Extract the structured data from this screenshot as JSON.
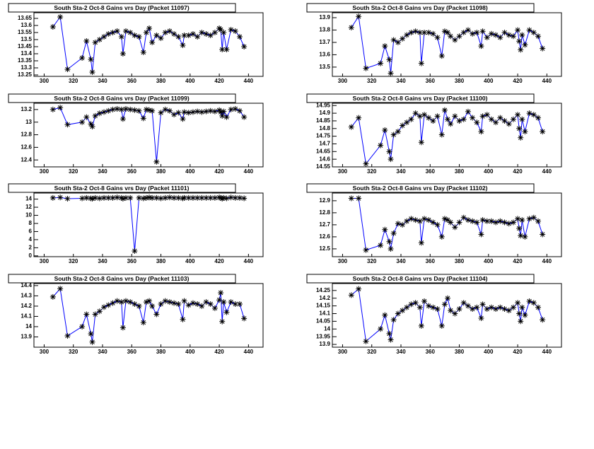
{
  "chart_data": [
    {
      "type": "line",
      "title": "South Sta-2 Oct-8 Gains vrs Day (Packet 11097)",
      "color": "#0000ff",
      "marker_color": "#000000",
      "x": [
        306,
        311,
        316,
        326,
        329,
        332,
        333,
        335,
        338,
        341,
        344,
        347,
        350,
        353,
        354,
        356,
        359,
        362,
        365,
        368,
        370,
        372,
        374,
        377,
        380,
        383,
        386,
        389,
        392,
        395,
        396,
        399,
        402,
        405,
        408,
        411,
        414,
        417,
        420,
        421,
        422,
        423,
        425,
        428,
        431,
        434,
        437
      ],
      "values": [
        13.59,
        13.66,
        13.29,
        13.37,
        13.49,
        13.36,
        13.27,
        13.48,
        13.5,
        13.52,
        13.54,
        13.55,
        13.56,
        13.52,
        13.4,
        13.56,
        13.55,
        13.53,
        13.52,
        13.41,
        13.55,
        13.58,
        13.48,
        13.53,
        13.51,
        13.55,
        13.56,
        13.54,
        13.52,
        13.46,
        13.53,
        13.53,
        13.54,
        13.52,
        13.55,
        13.54,
        13.53,
        13.55,
        13.58,
        13.57,
        13.43,
        13.55,
        13.43,
        13.57,
        13.56,
        13.52,
        13.45
      ],
      "xlim": [
        293,
        450
      ],
      "xticks": [
        300,
        320,
        340,
        360,
        380,
        400,
        420,
        440
      ],
      "ylim": [
        13.24,
        13.69
      ],
      "yticks": [
        13.25,
        13.3,
        13.35,
        13.4,
        13.45,
        13.5,
        13.55,
        13.6,
        13.65
      ]
    },
    {
      "type": "line",
      "title": "South Sta-2 Oct-8 Gains vrs Day (Packet 11098)",
      "color": "#0000ff",
      "marker_color": "#000000",
      "x": [
        306,
        311,
        316,
        326,
        329,
        332,
        333,
        335,
        338,
        341,
        344,
        347,
        350,
        353,
        354,
        356,
        359,
        362,
        365,
        368,
        370,
        372,
        374,
        377,
        380,
        383,
        386,
        389,
        392,
        395,
        396,
        399,
        402,
        405,
        408,
        411,
        414,
        417,
        420,
        421,
        422,
        423,
        425,
        428,
        431,
        434,
        437
      ],
      "values": [
        13.82,
        13.91,
        13.49,
        13.53,
        13.67,
        13.56,
        13.45,
        13.72,
        13.7,
        13.73,
        13.76,
        13.78,
        13.79,
        13.78,
        13.53,
        13.78,
        13.78,
        13.77,
        13.74,
        13.59,
        13.79,
        13.78,
        13.75,
        13.72,
        13.75,
        13.78,
        13.8,
        13.77,
        13.78,
        13.67,
        13.79,
        13.74,
        13.77,
        13.76,
        13.74,
        13.78,
        13.76,
        13.75,
        13.8,
        13.71,
        13.64,
        13.76,
        13.68,
        13.8,
        13.78,
        13.75,
        13.65
      ],
      "xlim": [
        293,
        450
      ],
      "xticks": [
        300,
        320,
        340,
        360,
        380,
        400,
        420,
        440
      ],
      "ylim": [
        13.425,
        13.94
      ],
      "yticks": [
        13.5,
        13.6,
        13.7,
        13.8,
        13.9
      ]
    },
    {
      "type": "line",
      "title": "South Sta-2 Oct-8 Gains vrs Day (Packet 11099)",
      "color": "#0000ff",
      "marker_color": "#000000",
      "x": [
        306,
        311,
        316,
        326,
        329,
        332,
        333,
        335,
        338,
        341,
        344,
        347,
        350,
        353,
        354,
        356,
        359,
        362,
        365,
        368,
        370,
        372,
        374,
        377,
        380,
        383,
        386,
        389,
        392,
        395,
        396,
        399,
        402,
        405,
        408,
        411,
        414,
        417,
        420,
        421,
        422,
        423,
        425,
        428,
        431,
        434,
        437
      ],
      "values": [
        13.2,
        13.23,
        12.96,
        13.0,
        13.08,
        12.97,
        12.93,
        13.1,
        13.14,
        13.16,
        13.18,
        13.2,
        13.21,
        13.2,
        13.05,
        13.21,
        13.2,
        13.19,
        13.18,
        13.06,
        13.2,
        13.19,
        13.18,
        12.37,
        13.15,
        13.2,
        13.18,
        13.12,
        13.15,
        13.05,
        13.16,
        13.15,
        13.16,
        13.17,
        13.16,
        13.17,
        13.18,
        13.17,
        13.19,
        13.16,
        13.1,
        13.17,
        13.08,
        13.2,
        13.21,
        13.18,
        13.08
      ],
      "xlim": [
        293,
        450
      ],
      "xticks": [
        300,
        320,
        340,
        360,
        380,
        400,
        420,
        440
      ],
      "ylim": [
        12.29,
        13.3
      ],
      "yticks": [
        12.4,
        12.6,
        12.8,
        13,
        13.2
      ]
    },
    {
      "type": "line",
      "title": "South Sta-2 Oct-8 Gains vrs Day (Packet 11100)",
      "color": "#0000ff",
      "marker_color": "#000000",
      "x": [
        306,
        311,
        316,
        326,
        329,
        332,
        333,
        335,
        338,
        341,
        344,
        347,
        350,
        353,
        354,
        356,
        359,
        362,
        365,
        368,
        370,
        372,
        374,
        377,
        380,
        383,
        386,
        389,
        392,
        395,
        396,
        399,
        402,
        405,
        408,
        411,
        414,
        417,
        420,
        421,
        422,
        423,
        425,
        428,
        431,
        434,
        437
      ],
      "values": [
        14.81,
        14.87,
        14.57,
        14.69,
        14.79,
        14.65,
        14.6,
        14.76,
        14.78,
        14.82,
        14.84,
        14.86,
        14.9,
        14.88,
        14.71,
        14.89,
        14.87,
        14.85,
        14.88,
        14.76,
        14.92,
        14.86,
        14.83,
        14.88,
        14.85,
        14.86,
        14.91,
        14.87,
        14.84,
        14.78,
        14.88,
        14.89,
        14.86,
        14.84,
        14.87,
        14.85,
        14.83,
        14.86,
        14.89,
        14.8,
        14.74,
        14.86,
        14.78,
        14.9,
        14.89,
        14.87,
        14.78
      ],
      "xlim": [
        293,
        450
      ],
      "xticks": [
        300,
        320,
        340,
        360,
        380,
        400,
        420,
        440
      ],
      "ylim": [
        14.55,
        14.965
      ],
      "yticks": [
        14.55,
        14.6,
        14.65,
        14.7,
        14.75,
        14.8,
        14.85,
        14.9,
        14.95
      ]
    },
    {
      "type": "line",
      "title": "South Sta-2 Oct-8 Gains vrs Day (Packet 11101)",
      "color": "#0000ff",
      "marker_color": "#000000",
      "x": [
        306,
        311,
        316,
        326,
        329,
        332,
        333,
        335,
        338,
        341,
        344,
        347,
        350,
        353,
        354,
        356,
        359,
        362,
        365,
        368,
        370,
        372,
        374,
        377,
        380,
        383,
        386,
        389,
        392,
        395,
        396,
        399,
        402,
        405,
        408,
        411,
        414,
        417,
        420,
        421,
        422,
        423,
        425,
        428,
        431,
        434,
        437
      ],
      "values": [
        14.3,
        14.4,
        14.1,
        14.2,
        14.3,
        14.2,
        14.1,
        14.3,
        14.2,
        14.3,
        14.3,
        14.3,
        14.4,
        14.3,
        14.1,
        14.3,
        14.3,
        1.2,
        14.3,
        14.2,
        14.3,
        14.4,
        14.3,
        14.3,
        14.2,
        14.3,
        14.4,
        14.3,
        14.3,
        14.2,
        14.3,
        14.3,
        14.3,
        14.3,
        14.3,
        14.3,
        14.3,
        14.3,
        14.4,
        14.3,
        14.1,
        14.3,
        14.2,
        14.4,
        14.3,
        14.3,
        14.2
      ],
      "xlim": [
        293,
        450
      ],
      "xticks": [
        300,
        320,
        340,
        360,
        380,
        400,
        420,
        440
      ],
      "ylim": [
        -0.2,
        15.5
      ],
      "yticks": [
        0,
        2,
        4,
        6,
        8,
        10,
        12,
        14
      ]
    },
    {
      "type": "line",
      "title": "South Sta-2 Oct-8 Gains vrs Day (Packet 11102)",
      "color": "#0000ff",
      "marker_color": "#000000",
      "x": [
        306,
        311,
        316,
        326,
        329,
        332,
        333,
        335,
        338,
        341,
        344,
        347,
        350,
        353,
        354,
        356,
        359,
        362,
        365,
        368,
        370,
        372,
        374,
        377,
        380,
        383,
        386,
        389,
        392,
        395,
        396,
        399,
        402,
        405,
        408,
        411,
        414,
        417,
        420,
        421,
        422,
        423,
        425,
        428,
        431,
        434,
        437
      ],
      "values": [
        12.92,
        12.92,
        12.49,
        12.53,
        12.66,
        12.56,
        12.5,
        12.63,
        12.71,
        12.7,
        12.73,
        12.75,
        12.74,
        12.73,
        12.55,
        12.75,
        12.74,
        12.72,
        12.7,
        12.6,
        12.75,
        12.74,
        12.72,
        12.68,
        12.72,
        12.76,
        12.74,
        12.73,
        12.72,
        12.62,
        12.74,
        12.73,
        12.73,
        12.72,
        12.73,
        12.72,
        12.71,
        12.72,
        12.75,
        12.67,
        12.61,
        12.74,
        12.6,
        12.75,
        12.76,
        12.73,
        12.62
      ],
      "xlim": [
        293,
        450
      ],
      "xticks": [
        300,
        320,
        340,
        360,
        380,
        400,
        420,
        440
      ],
      "ylim": [
        12.435,
        12.964
      ],
      "yticks": [
        12.5,
        12.6,
        12.7,
        12.8,
        12.9
      ]
    },
    {
      "type": "line",
      "title": "South Sta-2 Oct-8 Gains vrs Day (Packet 11103)",
      "color": "#0000ff",
      "marker_color": "#000000",
      "x": [
        306,
        311,
        316,
        326,
        329,
        332,
        333,
        335,
        338,
        341,
        344,
        347,
        350,
        353,
        354,
        356,
        359,
        362,
        365,
        368,
        370,
        372,
        374,
        377,
        380,
        383,
        386,
        389,
        392,
        395,
        396,
        399,
        402,
        405,
        408,
        411,
        414,
        417,
        420,
        421,
        422,
        423,
        425,
        428,
        431,
        434,
        437
      ],
      "values": [
        14.29,
        14.37,
        13.91,
        14.0,
        14.12,
        13.93,
        13.85,
        14.12,
        14.15,
        14.19,
        14.21,
        14.23,
        14.25,
        14.24,
        13.99,
        14.25,
        14.24,
        14.22,
        14.2,
        14.04,
        14.24,
        14.25,
        14.2,
        14.12,
        14.22,
        14.25,
        14.24,
        14.23,
        14.22,
        14.07,
        14.25,
        14.21,
        14.23,
        14.22,
        14.2,
        14.24,
        14.22,
        14.18,
        14.26,
        14.33,
        14.05,
        14.24,
        14.14,
        14.24,
        14.22,
        14.22,
        14.08
      ],
      "xlim": [
        293,
        450
      ],
      "xticks": [
        300,
        320,
        340,
        360,
        380,
        400,
        420,
        440
      ],
      "ylim": [
        13.8,
        14.42
      ],
      "yticks": [
        13.9,
        14,
        14.1,
        14.2,
        14.3,
        14.4
      ]
    },
    {
      "type": "line",
      "title": "South Sta-2 Oct-8 Gains vrs Day (Packet 11104)",
      "color": "#0000ff",
      "marker_color": "#000000",
      "x": [
        306,
        311,
        316,
        326,
        329,
        332,
        333,
        335,
        338,
        341,
        344,
        347,
        350,
        353,
        354,
        356,
        359,
        362,
        365,
        368,
        370,
        372,
        374,
        377,
        380,
        383,
        386,
        389,
        392,
        395,
        396,
        399,
        402,
        405,
        408,
        411,
        414,
        417,
        420,
        421,
        422,
        423,
        425,
        428,
        431,
        434,
        437
      ],
      "values": [
        14.22,
        14.26,
        13.92,
        14.0,
        14.09,
        13.97,
        13.93,
        14.06,
        14.1,
        14.12,
        14.14,
        14.16,
        14.17,
        14.14,
        14.02,
        14.18,
        14.15,
        14.14,
        14.13,
        14.02,
        14.16,
        14.2,
        14.12,
        14.1,
        14.13,
        14.17,
        14.15,
        14.13,
        14.14,
        14.07,
        14.16,
        14.13,
        14.14,
        14.13,
        14.14,
        14.13,
        14.12,
        14.14,
        14.17,
        14.1,
        14.05,
        14.14,
        14.09,
        14.18,
        14.17,
        14.14,
        14.06
      ],
      "xlim": [
        293,
        450
      ],
      "xticks": [
        300,
        320,
        340,
        360,
        380,
        400,
        420,
        440
      ],
      "ylim": [
        13.882,
        14.295
      ],
      "yticks": [
        13.9,
        13.95,
        14,
        14.05,
        14.1,
        14.15,
        14.2,
        14.25
      ]
    }
  ]
}
